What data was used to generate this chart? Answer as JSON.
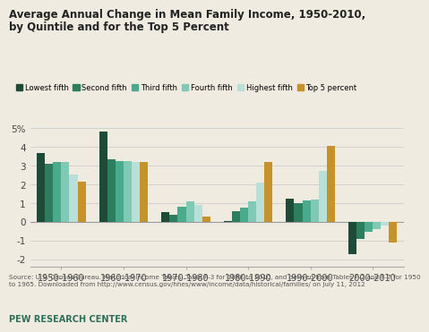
{
  "title_line1": "Average Annual Change in Mean Family Income, 1950-2010,",
  "title_line2": "by Quintile and for the Top 5 Percent",
  "categories": [
    "1950-1960",
    "1960-1970",
    "1970-1980",
    "1980-1990",
    "1990-2000",
    "2000-2010"
  ],
  "series_names": [
    "Lowest fifth",
    "Second fifth",
    "Third fifth",
    "Fourth fifth",
    "Highest fifth",
    "Top 5 percent"
  ],
  "series": {
    "Lowest fifth": [
      3.7,
      4.85,
      0.5,
      0.03,
      1.25,
      -1.75
    ],
    "Second fifth": [
      3.1,
      3.35,
      0.38,
      0.55,
      1.0,
      -0.9
    ],
    "Third fifth": [
      3.2,
      3.25,
      0.8,
      0.75,
      1.15,
      -0.55
    ],
    "Fourth fifth": [
      3.2,
      3.25,
      1.1,
      1.1,
      1.2,
      -0.4
    ],
    "Highest fifth": [
      2.55,
      3.2,
      0.9,
      2.1,
      2.7,
      -0.2
    ],
    "Top 5 percent": [
      2.15,
      3.2,
      0.28,
      3.2,
      4.05,
      -1.1
    ]
  },
  "colors": {
    "Lowest fifth": "#1e4a38",
    "Second fifth": "#2d7d5f",
    "Third fifth": "#4aab8c",
    "Fourth fifth": "#80c9b4",
    "Highest fifth": "#b8dfd8",
    "Top 5 percent": "#c8922a"
  },
  "ylim": [
    -2.4,
    5.4
  ],
  "yticks": [
    -2,
    -1,
    0,
    1,
    2,
    3,
    4,
    5
  ],
  "ytick_labels": [
    "-2",
    "-1",
    "0",
    "1",
    "2",
    "3",
    "4",
    "5%"
  ],
  "background_color": "#f0ebe0",
  "source_text": "Source: U.S. Census Bureau. Historical Income Tables. Table F-3 for 1966 to 2010, and derived from Tables F-2 and F-7 for 1950\nto 1965. Downloaded from http://www.census.gov/hhes/www/income/data/historical/families/ on July 11, 2012",
  "footer_text": "PEW RESEARCH CENTER",
  "bar_width": 0.13
}
